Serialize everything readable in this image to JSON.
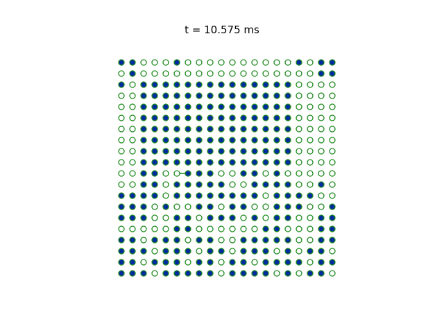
{
  "title": "t = 10.575 ms",
  "lattice": {
    "columns": 20,
    "rows": 20,
    "occupied_fill": "#002aa0",
    "edge_color": "#1f8a1f",
    "empty_fill": "#ffffff",
    "occupancy": [
      "11000100000000001011",
      "01000000000000000011",
      "10111111111111110000",
      "00111111111111110000",
      "00111111111111110000",
      "00111111111111110000",
      "00111111111111110000",
      "00111111111111110000",
      "00111111111111110000",
      "00111111111111110000",
      "00110011100110100000",
      "00110111110011110010",
      "11110111111110111100",
      "11101001101100111001",
      "11100110111010110011",
      "00000110000001100011",
      "11011101100111110011",
      "11101110110111010110",
      "11011101101101111011",
      "11101111101111010110"
    ],
    "links": [
      {
        "from": [
          10,
          5
        ],
        "to": [
          10,
          6
        ]
      }
    ]
  }
}
